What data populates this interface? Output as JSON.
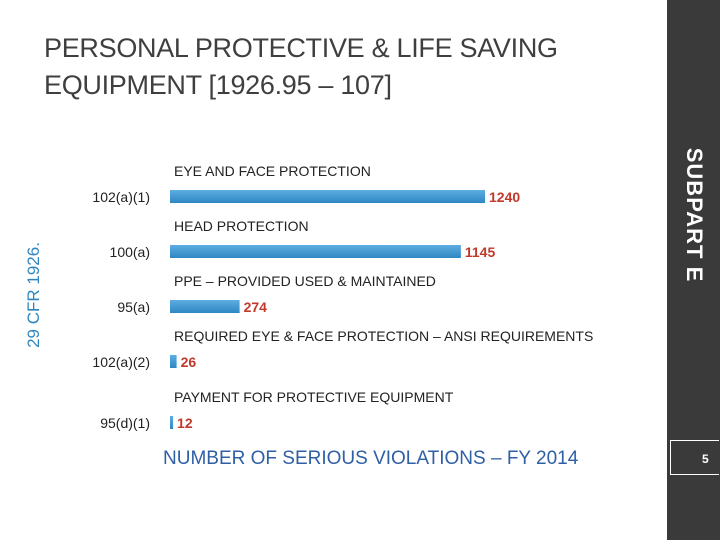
{
  "slide": {
    "title": "PERSONAL PROTECTIVE & LIFE SAVING EQUIPMENT [1926.95 – 107]",
    "side_label": "SUBPART E",
    "y_label": "29 CFR 1926.",
    "page_number": "5",
    "footer": "NUMBER OF SERIOUS VIOLATIONS – FY 2014"
  },
  "colors": {
    "bar": "#2e86c1",
    "bar_light": "#5dade2",
    "value_red": "#c0392b",
    "sidebar": "#3a3a3a"
  },
  "chart_data": {
    "type": "bar",
    "orientation": "horizontal",
    "categories": [
      "102(a)(1)",
      "100(a)",
      "95(a)",
      "102(a)(2)",
      "95(d)(1)"
    ],
    "descriptions": [
      "EYE AND FACE PROTECTION",
      "HEAD PROTECTION",
      "PPE – PROVIDED USED & MAINTAINED",
      "REQUIRED EYE & FACE PROTECTION – ANSI REQUIREMENTS",
      "PAYMENT FOR PROTECTIVE EQUIPMENT"
    ],
    "values": [
      1240,
      1145,
      274,
      26,
      12
    ],
    "value_labels": [
      "1240",
      "1145",
      "274",
      "26",
      "12"
    ],
    "xlim": [
      0,
      1240
    ],
    "grid": false,
    "legend": "none"
  }
}
